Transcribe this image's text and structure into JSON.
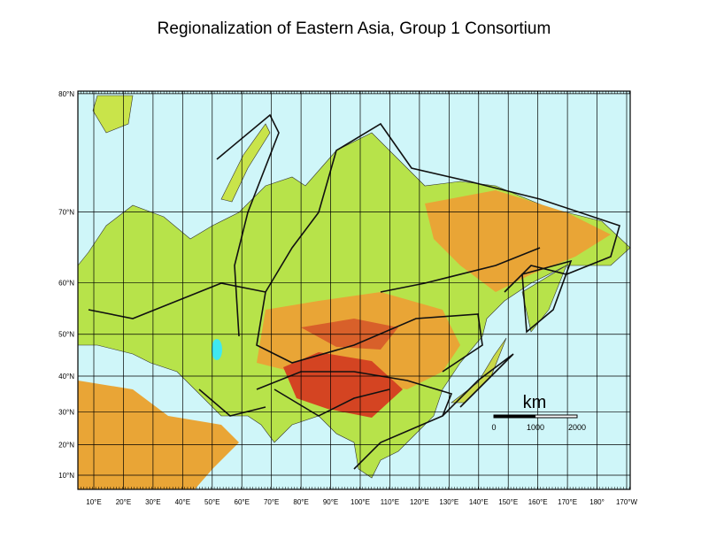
{
  "header": {
    "title": "Regionalization of Eastern Asia, Group 1 Consortium"
  },
  "map": {
    "latitudes": [
      {
        "value": 80,
        "label": "80°N"
      },
      {
        "value": 70,
        "label": "70°N"
      },
      {
        "value": 60,
        "label": "60°N"
      },
      {
        "value": 50,
        "label": "50°N"
      },
      {
        "value": 40,
        "label": "40°N"
      },
      {
        "value": 30,
        "label": "30°N"
      },
      {
        "value": 20,
        "label": "20°N"
      },
      {
        "value": 10,
        "label": "10°N"
      }
    ],
    "longitudes": [
      "10°E",
      "20°E",
      "30°E",
      "40°E",
      "50°E",
      "60°E",
      "70°E",
      "80°E",
      "90°E",
      "100°E",
      "110°E",
      "120°E",
      "130°E",
      "140°E",
      "150°E",
      "160°E",
      "170°E",
      "180°",
      "170°W"
    ],
    "scale_bar": {
      "unit": "km",
      "labels": [
        "0",
        "1000",
        "2000"
      ]
    }
  }
}
